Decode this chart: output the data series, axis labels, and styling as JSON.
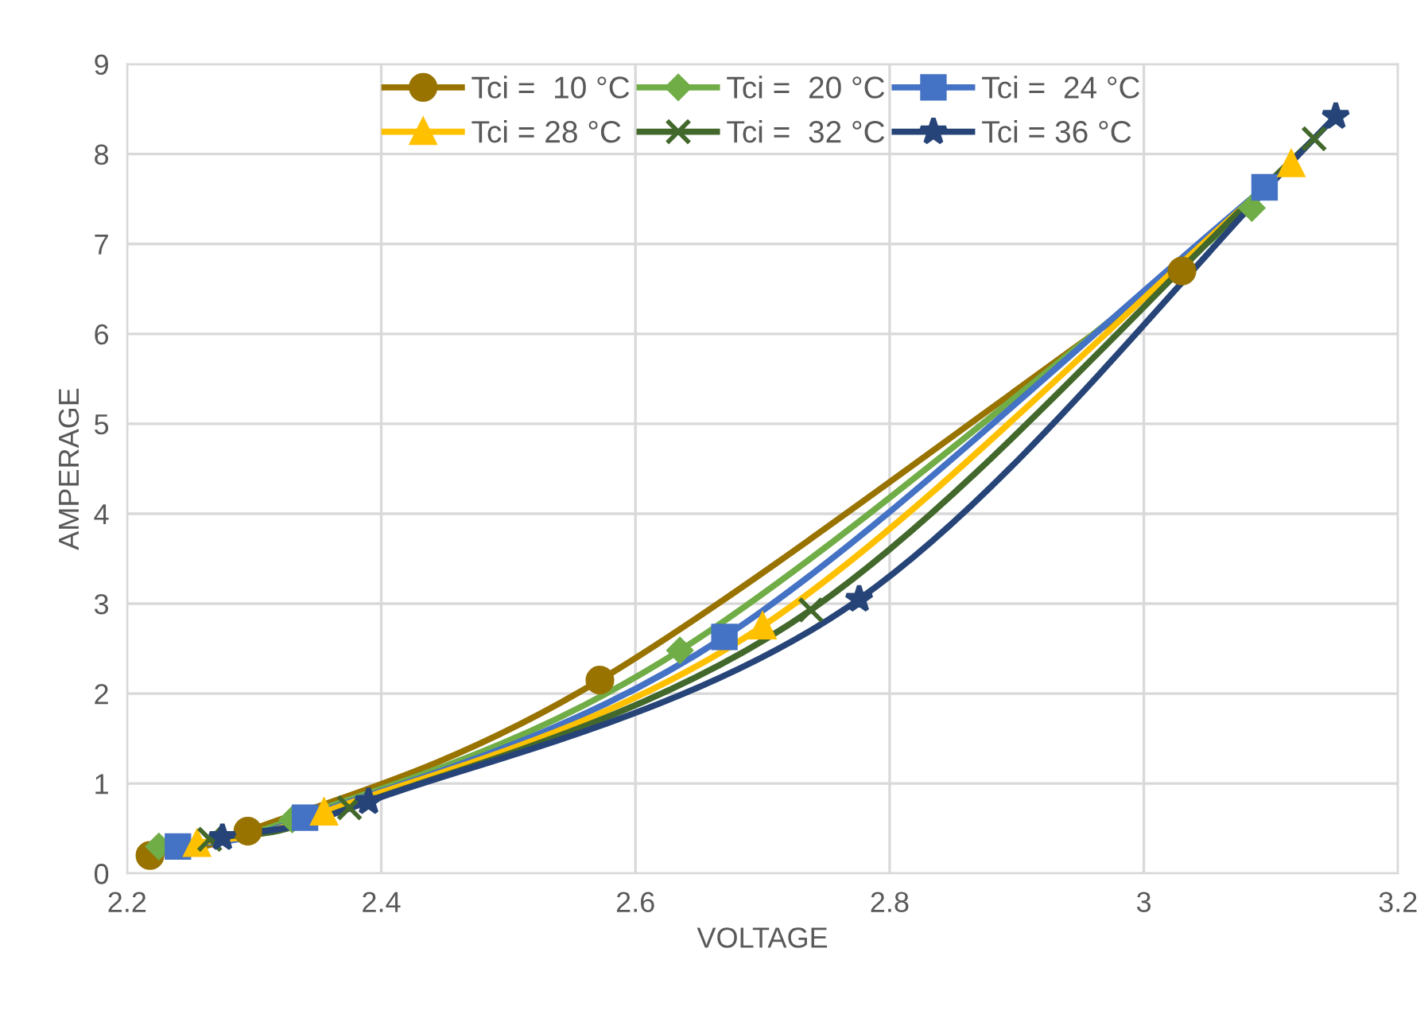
{
  "chart_data": {
    "type": "line",
    "xlabel": "VOLTAGE",
    "ylabel": "AMPERAGE",
    "xlim": [
      2.2,
      3.2
    ],
    "xticks": [
      2.2,
      2.4,
      2.6,
      2.8,
      3,
      3.2
    ],
    "ylim": [
      0,
      9
    ],
    "yticks": [
      0,
      1,
      2,
      3,
      4,
      5,
      6,
      7,
      8,
      9
    ],
    "grid": true,
    "legend": "top",
    "line_style": "solid",
    "series": [
      {
        "name": "Tci =  10 °C",
        "color": "#997300",
        "marker": "circle",
        "x": [
          2.218,
          2.295,
          2.572,
          3.03
        ],
        "values": [
          0.2,
          0.47,
          2.15,
          6.7
        ]
      },
      {
        "name": "Tci =  20 °C",
        "color": "#70ad47",
        "marker": "diamond",
        "x": [
          2.225,
          2.33,
          2.635,
          3.085
        ],
        "values": [
          0.3,
          0.6,
          2.48,
          7.4
        ]
      },
      {
        "name": "Tci =  24 °C",
        "color": "#4472c4",
        "marker": "square",
        "x": [
          2.24,
          2.34,
          2.67,
          3.095
        ],
        "values": [
          0.3,
          0.62,
          2.63,
          7.63
        ]
      },
      {
        "name": "Tci = 28 °C",
        "color": "#ffc000",
        "marker": "triangle",
        "x": [
          2.255,
          2.355,
          2.7,
          3.116
        ],
        "values": [
          0.33,
          0.68,
          2.75,
          7.89
        ]
      },
      {
        "name": "Tci =  32 °C",
        "color": "#43682b",
        "marker": "cross",
        "x": [
          2.265,
          2.375,
          2.738,
          3.134
        ],
        "values": [
          0.38,
          0.73,
          2.93,
          8.17
        ]
      },
      {
        "name": "Tci = 36 °C",
        "color": "#264478",
        "marker": "star",
        "x": [
          2.275,
          2.39,
          2.776,
          3.151
        ],
        "values": [
          0.4,
          0.8,
          3.05,
          8.42
        ]
      }
    ]
  }
}
